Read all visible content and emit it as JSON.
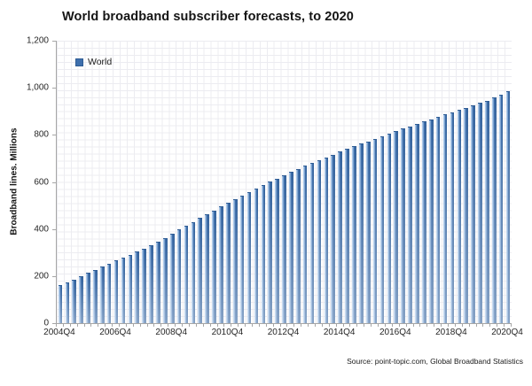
{
  "title": "World broadband subscriber forecasts, to 2020",
  "legend": {
    "label": "World"
  },
  "y_axis": {
    "title": "Broadband lines. Millions",
    "ticks": [
      "0",
      "200",
      "400",
      "600",
      "800",
      "1,000",
      "1,200"
    ],
    "max": 1200
  },
  "x_axis": {
    "tick_labels": [
      {
        "label": "2004Q4",
        "bar_index": 0
      },
      {
        "label": "2006Q4",
        "bar_index": 8
      },
      {
        "label": "2008Q4",
        "bar_index": 16
      },
      {
        "label": "2010Q4",
        "bar_index": 24
      },
      {
        "label": "2012Q4",
        "bar_index": 32
      },
      {
        "label": "2014Q4",
        "bar_index": 40
      },
      {
        "label": "2016Q4",
        "bar_index": 48
      },
      {
        "label": "2018Q4",
        "bar_index": 56
      },
      {
        "label": "2020Q4",
        "bar_index": 64
      }
    ]
  },
  "source": "Source: point-topic.com, Global Broadband Statistics",
  "colors": {
    "bar_main": "#3E6FAD",
    "bar_dark": "#2F5C94",
    "bar_highlight": "#A9C7E8",
    "axis": "#A6A6A6",
    "grid": "#ECECF1",
    "title_text": "#141414"
  },
  "chart_data": {
    "type": "bar",
    "title": "World broadband subscriber forecasts, to 2020",
    "xlabel": "",
    "ylabel": "Broadband lines. Millions",
    "ylim": [
      0,
      1200
    ],
    "grid": "fine minor mesh, vertical and horizontal light gray lines",
    "legend_entries": [
      "World"
    ],
    "legend_position": "top-left inside plot",
    "x_tick_labels_shown": [
      "2004Q4",
      "2006Q4",
      "2008Q4",
      "2010Q4",
      "2012Q4",
      "2014Q4",
      "2016Q4",
      "2018Q4",
      "2020Q4"
    ],
    "categories": [
      "2004Q4",
      "2005Q1",
      "2005Q2",
      "2005Q3",
      "2005Q4",
      "2006Q1",
      "2006Q2",
      "2006Q3",
      "2006Q4",
      "2007Q1",
      "2007Q2",
      "2007Q3",
      "2007Q4",
      "2008Q1",
      "2008Q2",
      "2008Q3",
      "2008Q4",
      "2009Q1",
      "2009Q2",
      "2009Q3",
      "2009Q4",
      "2010Q1",
      "2010Q2",
      "2010Q3",
      "2010Q4",
      "2011Q1",
      "2011Q2",
      "2011Q3",
      "2011Q4",
      "2012Q1",
      "2012Q2",
      "2012Q3",
      "2012Q4",
      "2013Q1",
      "2013Q2",
      "2013Q3",
      "2013Q4",
      "2014Q1",
      "2014Q2",
      "2014Q3",
      "2014Q4",
      "2015Q1",
      "2015Q2",
      "2015Q3",
      "2015Q4",
      "2016Q1",
      "2016Q2",
      "2016Q3",
      "2016Q4",
      "2017Q1",
      "2017Q2",
      "2017Q3",
      "2017Q4",
      "2018Q1",
      "2018Q2",
      "2018Q3",
      "2018Q4",
      "2019Q1",
      "2019Q2",
      "2019Q3",
      "2019Q4",
      "2020Q1",
      "2020Q2",
      "2020Q3",
      "2020Q4"
    ],
    "series": [
      {
        "name": "World",
        "values": [
          160,
          172,
          185,
          200,
          214,
          226,
          239,
          253,
          267,
          279,
          291,
          304,
          317,
          331,
          347,
          363,
          380,
          397,
          413,
          430,
          446,
          462,
          478,
          495,
          512,
          527,
          542,
          557,
          572,
          587,
          601,
          615,
          629,
          642,
          655,
          668,
          680,
          692,
          704,
          716,
          728,
          740,
          751,
          762,
          773,
          784,
          795,
          806,
          816,
          826,
          836,
          846,
          856,
          866,
          876,
          886,
          896,
          906,
          916,
          926,
          936,
          946,
          958,
          970,
          985
        ]
      }
    ]
  }
}
